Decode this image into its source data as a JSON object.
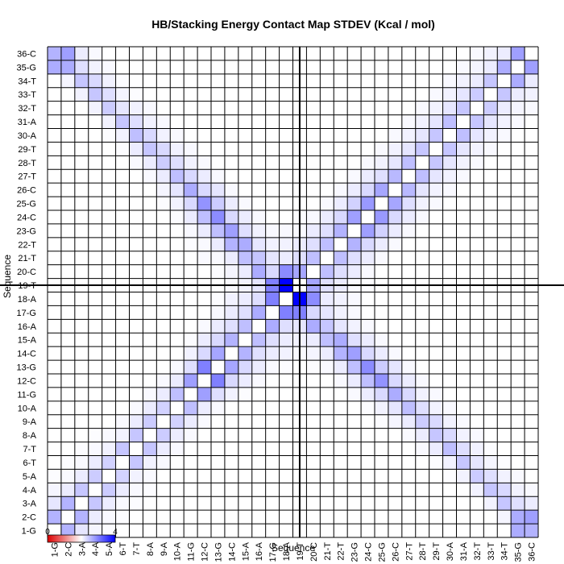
{
  "chart_data": {
    "type": "heatmap",
    "title": "HB/Stacking Energy Contact Map STDEV (Kcal / mol)",
    "xlabel": "Sequence",
    "ylabel": "Sequence",
    "categories": [
      "1-G",
      "2-C",
      "3-A",
      "4-A",
      "5-A",
      "6-T",
      "7-T",
      "8-A",
      "9-A",
      "10-A",
      "11-G",
      "12-C",
      "13-G",
      "14-C",
      "15-A",
      "16-A",
      "17-G",
      "18-A",
      "19-T",
      "20-C",
      "21-T",
      "22-T",
      "23-G",
      "24-C",
      "25-G",
      "26-C",
      "27-T",
      "28-T",
      "29-T",
      "30-A",
      "31-A",
      "32-T",
      "33-T",
      "34-T",
      "35-G",
      "36-C"
    ],
    "x_ticklabels": [
      "1-G",
      "2-C",
      "3-A",
      "4-A",
      "5-A",
      "6-T",
      "7-T",
      "8-A",
      "9-A",
      "10-A",
      "11-G",
      "12-C",
      "13-G",
      "14-C",
      "15-A",
      "16-A",
      "17-G",
      "18-A",
      "19-T",
      "20-C",
      "21-T",
      "22-T",
      "23-G",
      "24-C",
      "25-G",
      "26-C",
      "27-T",
      "28-T",
      "29-T",
      "30-A",
      "31-A",
      "32-T",
      "33-T",
      "34-T",
      "35-G",
      "36-C"
    ],
    "colorscale": {
      "min": 0,
      "max": 4,
      "low": "#dd0000",
      "mid": "#ffffff",
      "high": "#0000ff",
      "ticks": [
        "0",
        "4"
      ]
    },
    "values": [
      [
        0,
        1.2,
        0.4,
        0.15,
        0.05,
        0,
        0,
        0,
        0,
        0,
        0,
        0,
        0,
        0,
        0,
        0,
        0,
        0,
        0,
        0,
        0,
        0,
        0,
        0,
        0,
        0,
        0,
        0,
        0,
        0,
        0,
        0,
        0,
        0,
        1.3,
        1.2
      ],
      [
        1.2,
        0,
        1.2,
        0.3,
        0.1,
        0.05,
        0,
        0,
        0,
        0,
        0,
        0,
        0,
        0,
        0,
        0,
        0,
        0,
        0,
        0,
        0,
        0,
        0,
        0,
        0,
        0,
        0,
        0,
        0,
        0,
        0,
        0,
        0,
        0.15,
        1.3,
        1.5
      ],
      [
        0.4,
        1.2,
        0,
        0.9,
        0.3,
        0.1,
        0.05,
        0,
        0,
        0,
        0,
        0,
        0,
        0,
        0,
        0,
        0,
        0,
        0,
        0,
        0,
        0,
        0,
        0,
        0,
        0,
        0,
        0,
        0,
        0,
        0,
        0,
        0.2,
        0.9,
        0.5,
        0.3
      ],
      [
        0.15,
        0.3,
        0.9,
        0,
        0.8,
        0.3,
        0.1,
        0.05,
        0,
        0,
        0,
        0,
        0,
        0,
        0,
        0,
        0,
        0,
        0,
        0,
        0,
        0,
        0,
        0,
        0,
        0,
        0,
        0,
        0,
        0,
        0,
        0.2,
        0.9,
        0.6,
        0.2,
        0.1
      ],
      [
        0.05,
        0.1,
        0.3,
        0.8,
        0,
        0.7,
        0.2,
        0.1,
        0,
        0,
        0,
        0,
        0,
        0,
        0,
        0,
        0,
        0,
        0,
        0,
        0,
        0,
        0,
        0,
        0,
        0,
        0,
        0,
        0,
        0.05,
        0.2,
        0.8,
        0.5,
        0.2,
        0.1,
        0
      ],
      [
        0,
        0.05,
        0.1,
        0.3,
        0.7,
        0,
        0.9,
        0.2,
        0.1,
        0,
        0,
        0,
        0,
        0,
        0,
        0,
        0,
        0,
        0,
        0,
        0,
        0,
        0,
        0,
        0,
        0,
        0,
        0,
        0.05,
        0.2,
        0.9,
        0.4,
        0.15,
        0.05,
        0,
        0
      ],
      [
        0,
        0,
        0.05,
        0.1,
        0.2,
        0.9,
        0,
        0.9,
        0.3,
        0.1,
        0,
        0,
        0,
        0,
        0,
        0,
        0,
        0,
        0,
        0,
        0,
        0,
        0,
        0,
        0,
        0,
        0,
        0.1,
        0.3,
        1.0,
        0.5,
        0.2,
        0.05,
        0,
        0,
        0
      ],
      [
        0,
        0,
        0,
        0.05,
        0.1,
        0.2,
        0.9,
        0,
        0.8,
        0.3,
        0.1,
        0,
        0,
        0,
        0,
        0,
        0,
        0,
        0,
        0,
        0,
        0,
        0,
        0,
        0,
        0,
        0.1,
        0.3,
        0.9,
        0.6,
        0.2,
        0.1,
        0,
        0,
        0,
        0
      ],
      [
        0,
        0,
        0,
        0,
        0,
        0.1,
        0.3,
        0.8,
        0,
        0.7,
        0.3,
        0.1,
        0,
        0,
        0,
        0,
        0,
        0,
        0,
        0,
        0,
        0,
        0,
        0,
        0.05,
        0.15,
        0.3,
        0.8,
        0.6,
        0.2,
        0.1,
        0,
        0,
        0,
        0,
        0
      ],
      [
        0,
        0,
        0,
        0,
        0,
        0,
        0.1,
        0.3,
        0.7,
        0,
        1.0,
        0.3,
        0.1,
        0,
        0,
        0,
        0,
        0,
        0,
        0,
        0,
        0,
        0,
        0.05,
        0.2,
        0.4,
        1.0,
        0.5,
        0.2,
        0.1,
        0,
        0,
        0,
        0,
        0,
        0
      ],
      [
        0,
        0,
        0,
        0,
        0,
        0,
        0,
        0.1,
        0.3,
        1.0,
        0,
        1.5,
        0.5,
        0.2,
        0.05,
        0,
        0,
        0,
        0,
        0,
        0,
        0,
        0.1,
        0.3,
        0.6,
        1.3,
        0.6,
        0.2,
        0.1,
        0,
        0,
        0,
        0,
        0,
        0,
        0
      ],
      [
        0,
        0,
        0,
        0,
        0,
        0,
        0,
        0,
        0.1,
        0.3,
        1.5,
        0,
        2.0,
        0.6,
        0.3,
        0.1,
        0,
        0,
        0,
        0,
        0,
        0.1,
        0.3,
        1.0,
        1.7,
        0.6,
        0.3,
        0.1,
        0,
        0,
        0,
        0,
        0,
        0,
        0,
        0
      ],
      [
        0,
        0,
        0,
        0,
        0,
        0,
        0,
        0,
        0,
        0.1,
        0.5,
        2.0,
        0,
        1.4,
        0.6,
        0.3,
        0.1,
        0.05,
        0,
        0.05,
        0.1,
        0.3,
        1.0,
        1.8,
        0.8,
        0.4,
        0.1,
        0,
        0,
        0,
        0,
        0,
        0,
        0,
        0,
        0
      ],
      [
        0,
        0,
        0,
        0,
        0,
        0,
        0,
        0,
        0,
        0,
        0.2,
        0.6,
        1.4,
        0,
        1.2,
        0.5,
        0.3,
        0.2,
        0.1,
        0.15,
        0.3,
        1.2,
        1.5,
        0.6,
        0.3,
        0.1,
        0,
        0,
        0,
        0,
        0,
        0,
        0,
        0,
        0,
        0
      ],
      [
        0,
        0,
        0,
        0,
        0,
        0,
        0,
        0,
        0,
        0,
        0.05,
        0.3,
        0.6,
        1.2,
        0,
        1.0,
        0.5,
        0.3,
        0.2,
        0.3,
        1.0,
        1.3,
        0.5,
        0.3,
        0.1,
        0,
        0,
        0,
        0,
        0,
        0,
        0,
        0,
        0,
        0,
        0
      ],
      [
        0,
        0,
        0,
        0,
        0,
        0,
        0,
        0,
        0,
        0,
        0,
        0.1,
        0.3,
        0.5,
        1.0,
        0,
        1.3,
        0.5,
        0.4,
        1.3,
        0.9,
        0.4,
        0.2,
        0.1,
        0,
        0,
        0,
        0,
        0,
        0,
        0,
        0,
        0,
        0,
        0,
        0
      ],
      [
        0,
        0,
        0,
        0,
        0,
        0,
        0,
        0,
        0,
        0,
        0,
        0,
        0.1,
        0.3,
        0.5,
        1.3,
        0,
        2.0,
        2.0,
        0.6,
        0.4,
        0.2,
        0.1,
        0,
        0,
        0,
        0,
        0,
        0,
        0,
        0,
        0,
        0,
        0,
        0,
        0
      ],
      [
        0,
        0,
        0,
        0,
        0,
        0,
        0,
        0,
        0,
        0,
        0,
        0,
        0.05,
        0.2,
        0.3,
        0.5,
        2.0,
        0,
        4.0,
        1.8,
        0.3,
        0.2,
        0.1,
        0,
        0,
        0,
        0,
        0,
        0,
        0,
        0,
        0,
        0,
        0,
        0,
        0
      ],
      [
        0,
        0,
        0,
        0,
        0,
        0,
        0,
        0,
        0,
        0,
        0,
        0,
        0,
        0.1,
        0.2,
        0.4,
        2.0,
        4.0,
        0,
        1.4,
        0.5,
        0.3,
        0.1,
        0.05,
        0,
        0,
        0,
        0,
        0,
        0,
        0,
        0,
        0,
        0,
        0,
        0
      ],
      [
        0,
        0,
        0,
        0,
        0,
        0,
        0,
        0,
        0,
        0,
        0,
        0,
        0.05,
        0.15,
        0.3,
        1.3,
        0.6,
        1.8,
        1.4,
        0,
        1.0,
        0.5,
        0.3,
        0.1,
        0,
        0,
        0,
        0,
        0,
        0,
        0,
        0,
        0,
        0,
        0,
        0
      ],
      [
        0,
        0,
        0,
        0,
        0,
        0,
        0,
        0,
        0,
        0,
        0,
        0.1,
        0.1,
        0.3,
        1.0,
        0.9,
        0.4,
        0.3,
        0.5,
        1.0,
        0,
        1.0,
        0.5,
        0.3,
        0.1,
        0,
        0,
        0,
        0,
        0,
        0,
        0,
        0,
        0,
        0,
        0
      ],
      [
        0,
        0,
        0,
        0,
        0,
        0,
        0,
        0,
        0,
        0,
        0.05,
        0.1,
        0.3,
        1.2,
        1.3,
        0.4,
        0.2,
        0.2,
        0.3,
        0.5,
        1.0,
        0,
        1.2,
        0.6,
        0.3,
        0.1,
        0,
        0,
        0,
        0,
        0,
        0,
        0,
        0,
        0,
        0
      ],
      [
        0,
        0,
        0,
        0,
        0,
        0,
        0,
        0,
        0,
        0,
        0.1,
        0.3,
        1.0,
        1.5,
        0.5,
        0.2,
        0.1,
        0.1,
        0.1,
        0.3,
        0.5,
        1.2,
        0,
        1.5,
        0.7,
        0.3,
        0.1,
        0,
        0,
        0,
        0,
        0,
        0,
        0,
        0,
        0
      ],
      [
        0,
        0,
        0,
        0,
        0,
        0,
        0,
        0,
        0,
        0.05,
        0.3,
        1.0,
        1.8,
        0.6,
        0.3,
        0.1,
        0,
        0,
        0.05,
        0.1,
        0.3,
        0.6,
        1.5,
        0,
        1.6,
        0.6,
        0.3,
        0.1,
        0,
        0,
        0,
        0,
        0,
        0,
        0,
        0
      ],
      [
        0,
        0,
        0,
        0,
        0,
        0,
        0,
        0,
        0.05,
        0.2,
        0.6,
        1.7,
        0.8,
        0.3,
        0.1,
        0,
        0,
        0,
        0,
        0,
        0.1,
        0.3,
        0.7,
        1.6,
        0,
        1.4,
        0.5,
        0.2,
        0.1,
        0,
        0,
        0,
        0,
        0,
        0,
        0
      ],
      [
        0,
        0,
        0,
        0,
        0,
        0,
        0,
        0,
        0.15,
        0.4,
        1.3,
        0.6,
        0.4,
        0.1,
        0,
        0,
        0,
        0,
        0,
        0,
        0,
        0.1,
        0.3,
        0.6,
        1.4,
        0,
        1.1,
        0.4,
        0.2,
        0.1,
        0,
        0,
        0,
        0,
        0,
        0
      ],
      [
        0,
        0,
        0,
        0,
        0,
        0,
        0,
        0.1,
        0.3,
        1.0,
        0.6,
        0.3,
        0.1,
        0,
        0,
        0,
        0,
        0,
        0,
        0,
        0,
        0,
        0.1,
        0.3,
        0.5,
        1.1,
        0,
        1.0,
        0.4,
        0.2,
        0.1,
        0,
        0,
        0,
        0,
        0
      ],
      [
        0,
        0,
        0,
        0,
        0,
        0,
        0.1,
        0.3,
        0.8,
        0.5,
        0.2,
        0.1,
        0,
        0,
        0,
        0,
        0,
        0,
        0,
        0,
        0,
        0,
        0,
        0.1,
        0.2,
        0.4,
        1.0,
        0,
        0.9,
        0.4,
        0.2,
        0.1,
        0,
        0,
        0,
        0
      ],
      [
        0,
        0,
        0,
        0,
        0,
        0.05,
        0.3,
        0.9,
        0.6,
        0.2,
        0.1,
        0,
        0,
        0,
        0,
        0,
        0,
        0,
        0,
        0,
        0,
        0,
        0,
        0,
        0.1,
        0.2,
        0.4,
        0.9,
        0,
        0.9,
        0.4,
        0.2,
        0.1,
        0,
        0,
        0
      ],
      [
        0,
        0,
        0,
        0,
        0.05,
        0.2,
        1.0,
        0.6,
        0.2,
        0.1,
        0,
        0,
        0,
        0,
        0,
        0,
        0,
        0,
        0,
        0,
        0,
        0,
        0,
        0,
        0,
        0.1,
        0.2,
        0.4,
        0.9,
        0,
        1.0,
        0.4,
        0.2,
        0.1,
        0,
        0
      ],
      [
        0,
        0,
        0,
        0,
        0.2,
        0.9,
        0.5,
        0.2,
        0.1,
        0,
        0,
        0,
        0,
        0,
        0,
        0,
        0,
        0,
        0,
        0,
        0,
        0,
        0,
        0,
        0,
        0,
        0.1,
        0.2,
        0.4,
        1.0,
        0,
        0.9,
        0.4,
        0.2,
        0.1,
        0
      ],
      [
        0,
        0,
        0,
        0.2,
        0.8,
        0.4,
        0.2,
        0.1,
        0,
        0,
        0,
        0,
        0,
        0,
        0,
        0,
        0,
        0,
        0,
        0,
        0,
        0,
        0,
        0,
        0,
        0,
        0,
        0.1,
        0.2,
        0.4,
        0.9,
        0,
        0.8,
        0.3,
        0.15,
        0.1
      ],
      [
        0,
        0,
        0.2,
        0.9,
        0.5,
        0.15,
        0.05,
        0,
        0,
        0,
        0,
        0,
        0,
        0,
        0,
        0,
        0,
        0,
        0,
        0,
        0,
        0,
        0,
        0,
        0,
        0,
        0,
        0,
        0.1,
        0.2,
        0.4,
        0.8,
        0,
        0.9,
        0.3,
        0.2
      ],
      [
        0,
        0.15,
        0.9,
        0.6,
        0.2,
        0.05,
        0,
        0,
        0,
        0,
        0,
        0,
        0,
        0,
        0,
        0,
        0,
        0,
        0,
        0,
        0,
        0,
        0,
        0,
        0,
        0,
        0,
        0,
        0,
        0.1,
        0.2,
        0.3,
        0.9,
        0,
        1.3,
        0.3
      ],
      [
        1.3,
        1.3,
        0.5,
        0.2,
        0.1,
        0,
        0,
        0,
        0,
        0,
        0,
        0,
        0,
        0,
        0,
        0,
        0,
        0,
        0,
        0,
        0,
        0,
        0,
        0,
        0,
        0,
        0,
        0,
        0,
        0,
        0.1,
        0.15,
        0.3,
        1.3,
        0,
        1.5
      ],
      [
        1.2,
        1.5,
        0.3,
        0.1,
        0,
        0,
        0,
        0,
        0,
        0,
        0,
        0,
        0,
        0,
        0,
        0,
        0,
        0,
        0,
        0,
        0,
        0,
        0,
        0,
        0,
        0,
        0,
        0,
        0,
        0,
        0,
        0.1,
        0.2,
        0.3,
        1.5,
        0
      ]
    ],
    "crosshair": {
      "x": 18.5,
      "y": 18.5
    },
    "grid": true
  }
}
